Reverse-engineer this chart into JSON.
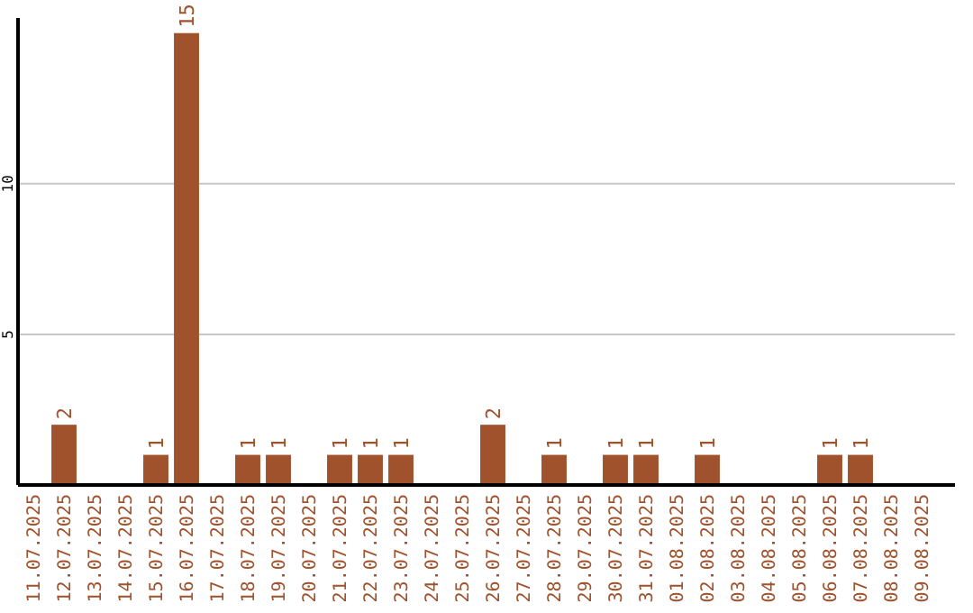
{
  "chart_data": {
    "type": "bar",
    "categories": [
      "11.07.2025",
      "12.07.2025",
      "13.07.2025",
      "14.07.2025",
      "15.07.2025",
      "16.07.2025",
      "17.07.2025",
      "18.07.2025",
      "19.07.2025",
      "20.07.2025",
      "21.07.2025",
      "22.07.2025",
      "23.07.2025",
      "24.07.2025",
      "25.07.2025",
      "26.07.2025",
      "27.07.2025",
      "28.07.2025",
      "29.07.2025",
      "30.07.2025",
      "31.07.2025",
      "01.08.2025",
      "02.08.2025",
      "03.08.2025",
      "04.08.2025",
      "05.08.2025",
      "06.08.2025",
      "07.08.2025",
      "08.08.2025",
      "09.08.2025"
    ],
    "values": [
      0,
      2,
      0,
      0,
      1,
      15,
      0,
      1,
      1,
      0,
      1,
      1,
      1,
      0,
      0,
      2,
      0,
      1,
      0,
      1,
      1,
      0,
      1,
      0,
      0,
      0,
      1,
      1,
      0,
      0
    ],
    "value_labels": [
      null,
      "2",
      null,
      null,
      "1",
      "15",
      null,
      "1",
      "1",
      null,
      "1",
      "1",
      "1",
      null,
      null,
      "2",
      null,
      "1",
      null,
      "1",
      "1",
      null,
      "1",
      null,
      null,
      null,
      "1",
      "1",
      null,
      null
    ],
    "color": "#a0522d",
    "ylim": [
      0,
      15.5
    ],
    "yticks": [
      5,
      10
    ],
    "grid": "y"
  }
}
